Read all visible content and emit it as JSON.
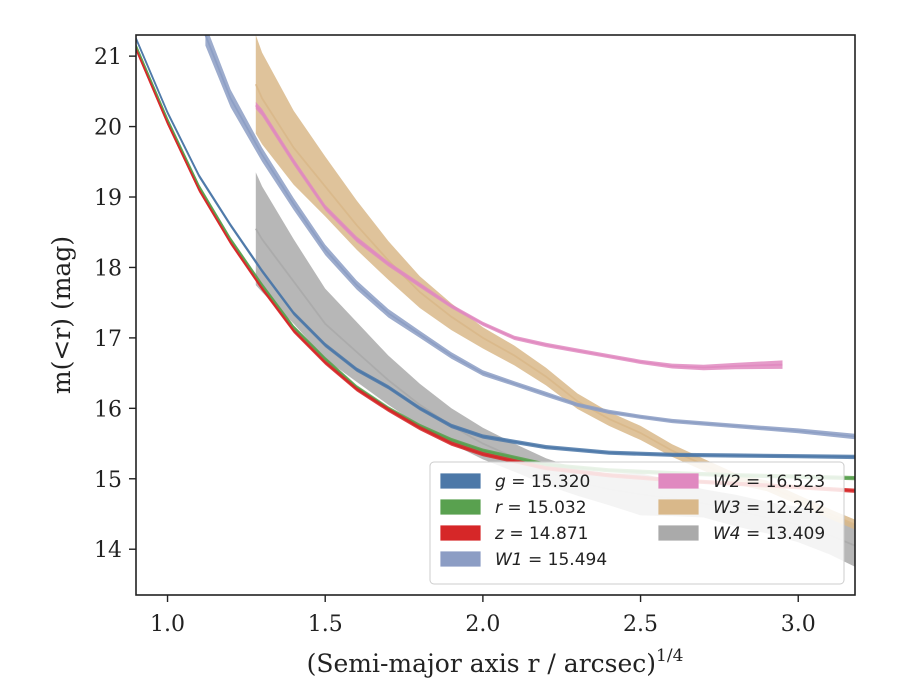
{
  "chart_data": {
    "type": "line",
    "title": "",
    "xlabel": "(Semi-major axis r / arcsec)",
    "xlabel_exponent": "1/4",
    "ylabel": "m(<r) (mag)",
    "xlim": [
      0.9,
      3.18
    ],
    "ylim": [
      21.3,
      13.35
    ],
    "y_inverted": true,
    "grid": false,
    "legend_placement": "lower-right",
    "legend_columns": 2,
    "x_ticks": [
      "1.0",
      "1.5",
      "2.0",
      "2.5",
      "3.0"
    ],
    "y_ticks": [
      "14",
      "15",
      "16",
      "17",
      "18",
      "19",
      "20",
      "21"
    ],
    "series": [
      {
        "name": "g = 15.320",
        "band": "g",
        "total": "15.320",
        "color": "#4c78a8",
        "x": [
          0.9,
          1.0,
          1.1,
          1.2,
          1.3,
          1.4,
          1.5,
          1.6,
          1.7,
          1.8,
          1.9,
          2.0,
          2.2,
          2.4,
          2.6,
          2.8,
          3.0,
          3.18
        ],
        "y": [
          21.25,
          20.2,
          19.3,
          18.6,
          17.95,
          17.35,
          16.9,
          16.55,
          16.3,
          16.0,
          15.75,
          15.6,
          15.45,
          15.37,
          15.34,
          15.33,
          15.32,
          15.31
        ],
        "band_width": [
          0.06,
          0.06,
          0.06,
          0.06,
          0.06,
          0.06,
          0.06,
          0.06,
          0.06,
          0.06,
          0.06,
          0.06,
          0.06,
          0.06,
          0.06,
          0.06,
          0.06,
          0.06
        ]
      },
      {
        "name": "r = 15.032",
        "band": "r",
        "total": "15.032",
        "color": "#59a14f",
        "x": [
          0.9,
          1.0,
          1.1,
          1.2,
          1.3,
          1.4,
          1.5,
          1.6,
          1.7,
          1.8,
          1.9,
          2.0,
          2.2,
          2.4,
          2.6,
          2.8,
          3.0,
          3.18
        ],
        "y": [
          21.15,
          20.1,
          19.15,
          18.4,
          17.75,
          17.15,
          16.7,
          16.3,
          16.0,
          15.75,
          15.55,
          15.4,
          15.2,
          15.12,
          15.08,
          15.05,
          15.03,
          15.01
        ],
        "band_width": [
          0.06,
          0.06,
          0.06,
          0.06,
          0.06,
          0.06,
          0.06,
          0.06,
          0.06,
          0.06,
          0.06,
          0.06,
          0.06,
          0.06,
          0.06,
          0.06,
          0.06,
          0.06
        ]
      },
      {
        "name": "z = 14.871",
        "band": "z",
        "total": "14.871",
        "color": "#d62728",
        "x": [
          0.9,
          1.0,
          1.1,
          1.2,
          1.3,
          1.4,
          1.5,
          1.6,
          1.7,
          1.8,
          1.9,
          2.0,
          2.2,
          2.4,
          2.6,
          2.8,
          3.0,
          3.18
        ],
        "y": [
          21.1,
          20.05,
          19.1,
          18.35,
          17.7,
          17.1,
          16.65,
          16.27,
          15.98,
          15.72,
          15.5,
          15.35,
          15.15,
          15.05,
          14.98,
          14.93,
          14.88,
          14.83
        ],
        "band_width": [
          0.06,
          0.06,
          0.06,
          0.06,
          0.06,
          0.06,
          0.06,
          0.06,
          0.06,
          0.06,
          0.06,
          0.06,
          0.06,
          0.06,
          0.06,
          0.06,
          0.06,
          0.06
        ]
      },
      {
        "name": "W1 = 15.494",
        "band": "W1",
        "total": "15.494",
        "color": "#8c9dc4",
        "x": [
          1.12,
          1.2,
          1.3,
          1.4,
          1.5,
          1.6,
          1.7,
          1.8,
          1.9,
          2.0,
          2.1,
          2.2,
          2.3,
          2.4,
          2.5,
          2.6,
          2.8,
          3.0,
          3.18
        ],
        "y": [
          21.3,
          20.4,
          19.6,
          18.9,
          18.25,
          17.75,
          17.35,
          17.05,
          16.75,
          16.5,
          16.35,
          16.2,
          16.05,
          15.95,
          15.88,
          15.82,
          15.75,
          15.68,
          15.6
        ],
        "band_width": [
          0.3,
          0.25,
          0.2,
          0.17,
          0.15,
          0.13,
          0.12,
          0.1,
          0.09,
          0.08,
          0.07,
          0.07,
          0.06,
          0.06,
          0.06,
          0.06,
          0.06,
          0.07,
          0.08
        ]
      },
      {
        "name": "W2 = 16.523",
        "band": "W2",
        "total": "16.523",
        "color": "#e089c0",
        "x": [
          1.28,
          1.3,
          1.4,
          1.5,
          1.6,
          1.7,
          1.8,
          1.9,
          2.0,
          2.1,
          2.2,
          2.3,
          2.4,
          2.5,
          2.6,
          2.7,
          2.8,
          2.95
        ],
        "y": [
          20.3,
          20.2,
          19.5,
          18.85,
          18.4,
          18.05,
          17.75,
          17.45,
          17.2,
          17.0,
          16.9,
          16.82,
          16.74,
          16.66,
          16.6,
          16.58,
          16.6,
          16.62
        ],
        "band_width": [
          0.1,
          0.1,
          0.09,
          0.08,
          0.08,
          0.07,
          0.07,
          0.06,
          0.06,
          0.06,
          0.06,
          0.06,
          0.06,
          0.06,
          0.07,
          0.08,
          0.09,
          0.12
        ]
      },
      {
        "name": "W3 = 12.242",
        "band": "W3",
        "total": "12.242",
        "color": "#d9b88a",
        "x": [
          1.28,
          1.3,
          1.4,
          1.5,
          1.6,
          1.7,
          1.8,
          1.9,
          2.0,
          2.1,
          2.2,
          2.3,
          2.4,
          2.5,
          2.6,
          2.7,
          2.8,
          2.9,
          3.0,
          3.1,
          3.18
        ],
        "y": [
          20.6,
          20.4,
          19.7,
          19.15,
          18.6,
          18.1,
          17.65,
          17.3,
          17.0,
          16.75,
          16.45,
          16.1,
          15.85,
          15.65,
          15.4,
          15.2,
          15.0,
          14.9,
          14.7,
          14.5,
          14.35
        ],
        "band_width": [
          1.4,
          1.3,
          1.05,
          0.85,
          0.7,
          0.55,
          0.45,
          0.38,
          0.3,
          0.28,
          0.25,
          0.22,
          0.2,
          0.2,
          0.18,
          0.17,
          0.16,
          0.15,
          0.14,
          0.14,
          0.14
        ]
      },
      {
        "name": "W4 = 13.409",
        "band": "W4",
        "total": "13.409",
        "color": "#aaaaaa",
        "x": [
          1.28,
          1.3,
          1.4,
          1.5,
          1.6,
          1.7,
          1.8,
          1.9,
          2.0,
          2.1,
          2.2,
          2.3,
          2.4,
          2.5,
          2.6,
          2.7,
          2.8,
          2.9,
          3.0,
          3.1,
          3.18
        ],
        "y": [
          18.55,
          18.4,
          17.8,
          17.2,
          16.8,
          16.4,
          16.05,
          15.75,
          15.5,
          15.3,
          15.1,
          14.95,
          14.85,
          14.78,
          14.72,
          14.65,
          14.55,
          14.45,
          14.35,
          14.2,
          14.05
        ],
        "band_width": [
          1.6,
          1.5,
          1.2,
          1.0,
          0.85,
          0.7,
          0.6,
          0.5,
          0.45,
          0.4,
          0.38,
          0.38,
          0.45,
          0.6,
          0.5,
          0.4,
          0.45,
          0.45,
          0.5,
          0.55,
          0.6
        ]
      }
    ]
  }
}
